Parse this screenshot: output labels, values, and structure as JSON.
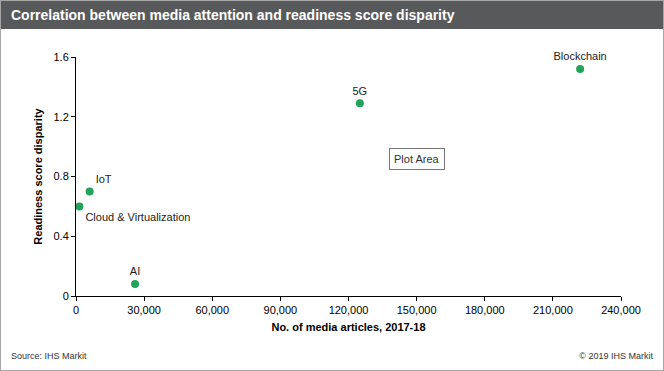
{
  "chart_data": {
    "type": "scatter",
    "title": "Correlation between media attention and readiness score disparity",
    "x_label": "No. of media articles, 2017-18",
    "y_label": "Readiness score disparity",
    "source": "Source: IHS Markit",
    "copyright": "© 2019 IHS Markit",
    "point_labels": [
      "IoT",
      "Cloud & Virtualization",
      "AI",
      "5G",
      "Blockchain"
    ],
    "x": [
      6000,
      1500,
      26000,
      125000,
      222000
    ],
    "values": [
      0.7,
      0.6,
      0.08,
      1.29,
      1.52
    ],
    "color": "#21a35a",
    "xlim": [
      0,
      240000
    ],
    "xticks": [
      0,
      {
        "value": 30000,
        "label": "30,000"
      },
      {
        "value": 60000,
        "label": "60,000"
      },
      {
        "value": 90000,
        "label": "90,000"
      },
      {
        "value": 120000,
        "label": "120,000"
      },
      {
        "value": 150000,
        "label": "150,000"
      },
      {
        "value": 180000,
        "label": "180,000"
      },
      {
        "value": 210000,
        "label": "210,000"
      },
      {
        "value": 240000,
        "label": "240,000"
      }
    ],
    "ylim": [
      0,
      1.6
    ],
    "yticks": [
      0,
      0.4,
      0.8,
      1.2,
      1.6
    ],
    "grid": false,
    "annotations": [
      {
        "text": "Plot Area",
        "x": 150000,
        "y": 0.92
      }
    ]
  }
}
